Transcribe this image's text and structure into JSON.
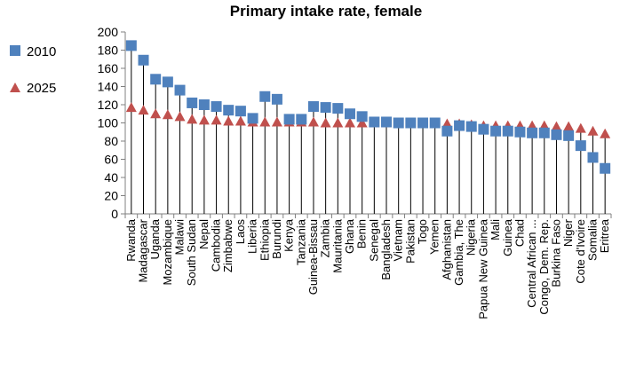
{
  "chart_data": {
    "type": "scatter",
    "title": "Primary intake rate, female",
    "xlabel": "",
    "ylabel": "",
    "ylim": [
      0,
      200
    ],
    "yticks": [
      0,
      20,
      40,
      60,
      80,
      100,
      120,
      140,
      160,
      180,
      200
    ],
    "grid": false,
    "legend_position": "left",
    "categories": [
      "Rwanda",
      "Madagascar",
      "Uganda",
      "Mozambique",
      "Malawi",
      "South Sudan",
      "Nepal",
      "Cambodia",
      "Zimbabwe",
      "Laos",
      "Liberia",
      "Ethiopia",
      "Burundi",
      "Kenya",
      "Tanzania",
      "Guinea-Bissau",
      "Zambia",
      "Mauritania",
      "Ghana",
      "Benin",
      "Senegal",
      "Bangladesh",
      "Vietnam",
      "Pakistan",
      "Togo",
      "Yemen",
      "Afghanistan",
      "Gambia, The",
      "Nigeria",
      "Papua New Guinea",
      "Mali",
      "Guinea",
      "Chad",
      "Central African ...",
      "Congo, Dem. Rep.",
      "Burkina Faso",
      "Niger",
      "Cote d'Ivoire",
      "Somalia",
      "Eritrea"
    ],
    "series": [
      {
        "name": "2010",
        "marker": "square",
        "color": "#4f81bd",
        "values": [
          185,
          169,
          148,
          145,
          136,
          122,
          120,
          118,
          114,
          113,
          105,
          129,
          126,
          104,
          104,
          118,
          117,
          116,
          110,
          107,
          101,
          101,
          100,
          100,
          100,
          100,
          91,
          97,
          96,
          93,
          91,
          91,
          90,
          89,
          89,
          87,
          86,
          75,
          62,
          50
        ]
      },
      {
        "name": "2025",
        "marker": "triangle",
        "color": "#c0504d",
        "values": [
          117,
          114,
          110,
          109,
          107,
          104,
          103,
          103,
          102,
          102,
          101,
          101,
          101,
          101,
          101,
          101,
          100,
          100,
          100,
          100,
          100,
          100,
          100,
          99,
          99,
          99,
          99,
          99,
          98,
          97,
          97,
          97,
          97,
          97,
          97,
          96,
          96,
          94,
          91,
          88
        ]
      }
    ]
  }
}
